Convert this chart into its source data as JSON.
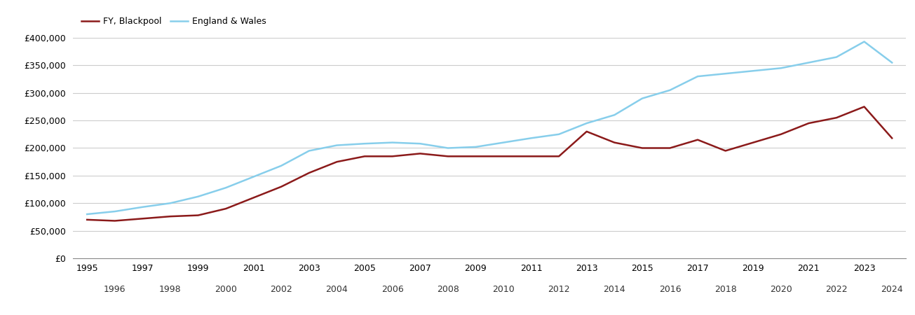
{
  "blackpool_years": [
    1995,
    1996,
    1997,
    1998,
    1999,
    2000,
    2001,
    2002,
    2003,
    2004,
    2005,
    2006,
    2007,
    2008,
    2009,
    2010,
    2011,
    2012,
    2013,
    2014,
    2015,
    2016,
    2017,
    2018,
    2019,
    2020,
    2021,
    2022,
    2023,
    2024
  ],
  "blackpool_values": [
    70000,
    68000,
    72000,
    76000,
    78000,
    90000,
    110000,
    130000,
    155000,
    175000,
    185000,
    185000,
    190000,
    185000,
    185000,
    185000,
    185000,
    185000,
    230000,
    210000,
    200000,
    200000,
    215000,
    195000,
    210000,
    225000,
    245000,
    255000,
    275000,
    218000
  ],
  "england_years": [
    1995,
    1996,
    1997,
    1998,
    1999,
    2000,
    2001,
    2002,
    2003,
    2004,
    2005,
    2006,
    2007,
    2008,
    2009,
    2010,
    2011,
    2012,
    2013,
    2014,
    2015,
    2016,
    2017,
    2018,
    2019,
    2020,
    2021,
    2022,
    2023,
    2024
  ],
  "england_values": [
    80000,
    85000,
    93000,
    100000,
    112000,
    128000,
    148000,
    168000,
    195000,
    205000,
    208000,
    210000,
    208000,
    200000,
    202000,
    210000,
    218000,
    225000,
    245000,
    260000,
    290000,
    305000,
    330000,
    335000,
    340000,
    345000,
    355000,
    365000,
    393000,
    355000
  ],
  "blackpool_color": "#8B1A1A",
  "england_color": "#87CEEB",
  "blackpool_label": "FY, Blackpool",
  "england_label": "England & Wales",
  "ylim": [
    0,
    400000
  ],
  "yticks": [
    0,
    50000,
    100000,
    150000,
    200000,
    250000,
    300000,
    350000,
    400000
  ],
  "xlim": [
    1994.5,
    2024.5
  ],
  "background_color": "#ffffff",
  "grid_color": "#cccccc",
  "line_width": 1.8
}
